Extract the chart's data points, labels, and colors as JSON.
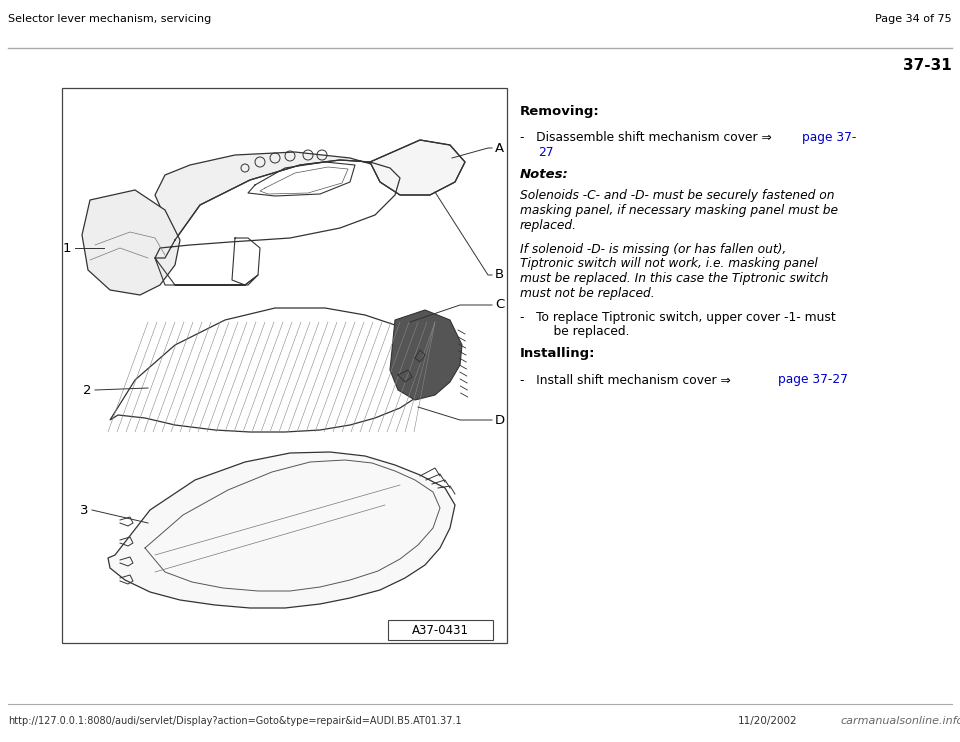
{
  "page_header_left": "Selector lever mechanism, servicing",
  "page_header_right": "Page 34 of 75",
  "page_number": "37-31",
  "diagram_label": "A37-0431",
  "section_removing": "Removing:",
  "section_notes": "Notes:",
  "section_installing": "Installing:",
  "note1_lines": [
    "Solenoids -C- and -D- must be securely fastened on",
    "masking panel, if necessary masking panel must be",
    "replaced."
  ],
  "note2_lines": [
    "If solenoid -D- is missing (or has fallen out),",
    "Tiptronic switch will not work, i.e. masking panel",
    "must be replaced. In this case the Tiptronic switch",
    "must not be replaced."
  ],
  "tip_lines": [
    "To replace Tiptronic switch, upper cover -1- must",
    "    be replaced."
  ],
  "link_color": "#0000cc",
  "text_color": "#000000",
  "bg_color": "#ffffff",
  "line_color": "#aaaaaa",
  "draw_color": "#333333",
  "footer_url": "http://127.0.0.1:8080/audi/servlet/Display?action=Goto&type=repair&id=AUDI.B5.AT01.37.1",
  "footer_date": "11/20/2002",
  "footer_logo": "carmanualsonline.info"
}
